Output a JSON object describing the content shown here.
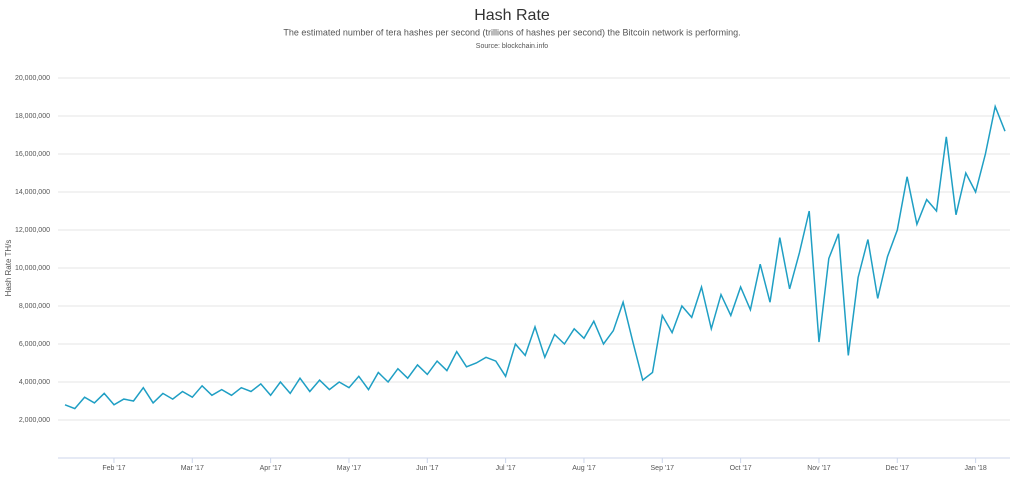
{
  "chart_data": {
    "type": "line",
    "title": "Hash Rate",
    "subtitle": "The estimated number of tera hashes per second (trillions of hashes per second) the Bitcoin network is performing.",
    "source": "Source: blockchain.info",
    "y_label": "Hash Rate TH/s",
    "categories": [
      null,
      null,
      null,
      null,
      null,
      "Feb '17",
      null,
      null,
      null,
      null,
      null,
      null,
      null,
      "Mar '17",
      null,
      null,
      null,
      null,
      null,
      null,
      null,
      "Apr '17",
      null,
      null,
      null,
      null,
      null,
      null,
      null,
      "May '17",
      null,
      null,
      null,
      null,
      null,
      null,
      null,
      "Jun '17",
      null,
      null,
      null,
      null,
      null,
      null,
      null,
      "Jul '17",
      null,
      null,
      null,
      null,
      null,
      null,
      null,
      "Aug '17",
      null,
      null,
      null,
      null,
      null,
      null,
      null,
      "Sep '17",
      null,
      null,
      null,
      null,
      null,
      null,
      null,
      "Oct '17",
      null,
      null,
      null,
      null,
      null,
      null,
      null,
      "Nov '17",
      null,
      null,
      null,
      null,
      null,
      null,
      null,
      "Dec '17",
      null,
      null,
      null,
      null,
      null,
      null,
      null,
      "Jan '18",
      null,
      null,
      null
    ],
    "series": [
      {
        "name": "Hash Rate",
        "color": "#1f9fc4",
        "values": [
          2800000,
          2600000,
          3200000,
          2900000,
          3400000,
          2800000,
          3100000,
          3000000,
          3700000,
          2900000,
          3400000,
          3100000,
          3500000,
          3200000,
          3800000,
          3300000,
          3600000,
          3300000,
          3700000,
          3500000,
          3900000,
          3300000,
          4000000,
          3400000,
          4200000,
          3500000,
          4100000,
          3600000,
          4000000,
          3700000,
          4300000,
          3600000,
          4500000,
          4000000,
          4700000,
          4200000,
          4900000,
          4400000,
          5100000,
          4600000,
          5600000,
          4800000,
          5000000,
          5300000,
          5100000,
          4300000,
          6000000,
          5400000,
          6900000,
          5300000,
          6500000,
          6000000,
          6800000,
          6300000,
          7200000,
          6000000,
          6700000,
          8200000,
          6100000,
          4100000,
          4500000,
          7500000,
          6600000,
          8000000,
          7400000,
          9000000,
          6800000,
          8600000,
          7500000,
          9000000,
          7800000,
          10200000,
          8200000,
          11600000,
          8900000,
          10800000,
          13000000,
          6100000,
          10500000,
          11800000,
          5400000,
          9500000,
          11500000,
          8400000,
          10600000,
          12000000,
          14800000,
          12300000,
          13600000,
          13000000,
          16900000,
          12800000,
          15000000,
          14000000,
          16000000,
          18500000,
          17200000
        ]
      }
    ],
    "ylim": [
      0,
      20000000
    ],
    "yticks": [
      {
        "value": 2000000,
        "label": "2,000,000"
      },
      {
        "value": 4000000,
        "label": "4,000,000"
      },
      {
        "value": 6000000,
        "label": "6,000,000"
      },
      {
        "value": 8000000,
        "label": "8,000,000"
      },
      {
        "value": 10000000,
        "label": "10,000,000"
      },
      {
        "value": 12000000,
        "label": "12,000,000"
      },
      {
        "value": 14000000,
        "label": "14,000,000"
      },
      {
        "value": 16000000,
        "label": "16,000,000"
      },
      {
        "value": 18000000,
        "label": "18,000,000"
      },
      {
        "value": 20000000,
        "label": "20,000,000"
      }
    ],
    "grid": true
  }
}
